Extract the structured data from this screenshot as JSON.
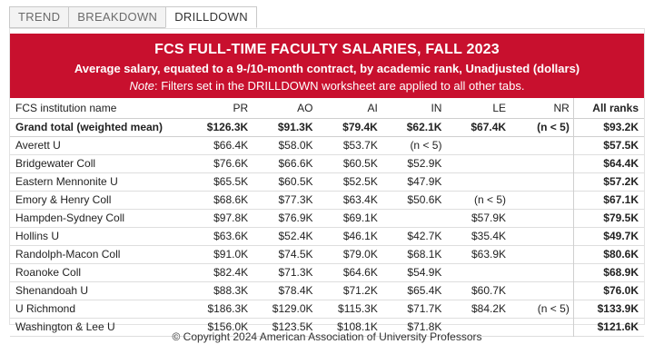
{
  "tabs": [
    {
      "label": "TREND",
      "active": false
    },
    {
      "label": "BREAKDOWN",
      "active": false
    },
    {
      "label": "DRILLDOWN",
      "active": true
    }
  ],
  "header": {
    "title": "FCS FULL-TIME FACULTY SALARIES, FALL 2023",
    "subtitle": "Average salary, equated to a 9-/10-month contract, by academic rank, Unadjusted (dollars)",
    "note_label": "Note",
    "note_text": ": Filters set in the DRILLDOWN worksheet are applied to all other tabs."
  },
  "colors": {
    "header_bg": "#c8102e",
    "header_text": "#ffffff"
  },
  "table": {
    "columns": [
      "FCS institution name",
      "PR",
      "AO",
      "AI",
      "IN",
      "LE",
      "NR",
      "All ranks"
    ],
    "grand_total": [
      "Grand total (weighted mean)",
      "$126.3K",
      "$91.3K",
      "$79.4K",
      "$62.1K",
      "$67.4K",
      "(n < 5)",
      "$93.2K"
    ],
    "rows": [
      [
        "Averett U",
        "$66.4K",
        "$58.0K",
        "$53.7K",
        "(n < 5)",
        "",
        "",
        "$57.5K"
      ],
      [
        "Bridgewater Coll",
        "$76.6K",
        "$66.6K",
        "$60.5K",
        "$52.9K",
        "",
        "",
        "$64.4K"
      ],
      [
        "Eastern Mennonite U",
        "$65.5K",
        "$60.5K",
        "$52.5K",
        "$47.9K",
        "",
        "",
        "$57.2K"
      ],
      [
        "Emory & Henry Coll",
        "$68.6K",
        "$77.3K",
        "$63.4K",
        "$50.6K",
        "(n < 5)",
        "",
        "$67.1K"
      ],
      [
        "Hampden-Sydney Coll",
        "$97.8K",
        "$76.9K",
        "$69.1K",
        "",
        "$57.9K",
        "",
        "$79.5K"
      ],
      [
        "Hollins U",
        "$63.6K",
        "$52.4K",
        "$46.1K",
        "$42.7K",
        "$35.4K",
        "",
        "$49.7K"
      ],
      [
        "Randolph-Macon Coll",
        "$91.0K",
        "$74.5K",
        "$79.0K",
        "$68.1K",
        "$63.9K",
        "",
        "$80.6K"
      ],
      [
        "Roanoke Coll",
        "$82.4K",
        "$71.3K",
        "$64.6K",
        "$54.9K",
        "",
        "",
        "$68.9K"
      ],
      [
        "Shenandoah U",
        "$88.3K",
        "$78.4K",
        "$71.2K",
        "$65.4K",
        "$60.7K",
        "",
        "$76.0K"
      ],
      [
        "U Richmond",
        "$186.3K",
        "$129.0K",
        "$115.3K",
        "$71.7K",
        "$84.2K",
        "(n < 5)",
        "$133.9K"
      ],
      [
        "Washington & Lee U",
        "$156.0K",
        "$123.5K",
        "$108.1K",
        "$71.8K",
        "",
        "",
        "$121.6K"
      ]
    ]
  },
  "footer": {
    "copyright": "© Copyright 2024 American Association of University Professors"
  }
}
